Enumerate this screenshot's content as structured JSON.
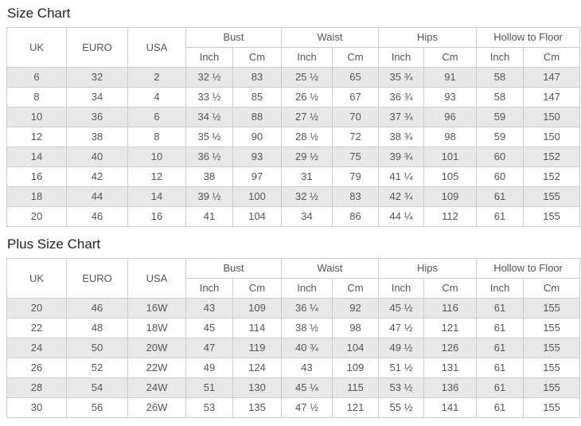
{
  "colors": {
    "row_alt_bg": "#e8e8e8",
    "border": "#cccccc",
    "text": "#555555",
    "title_text": "#1f1f1f"
  },
  "size_chart": {
    "title": "Size Chart",
    "headers": {
      "uk": "UK",
      "euro": "EURO",
      "usa": "USA"
    },
    "groups": {
      "bust": "Bust",
      "waist": "Waist",
      "hips": "Hips",
      "hollow": "Hollow to Floor"
    },
    "units": {
      "inch": "Inch",
      "cm": "Cm"
    },
    "rows": [
      [
        "6",
        "32",
        "2",
        "32 ½",
        "83",
        "25 ½",
        "65",
        "35 ¾",
        "91",
        "58",
        "147"
      ],
      [
        "8",
        "34",
        "4",
        "33 ½",
        "85",
        "26 ½",
        "67",
        "36 ¾",
        "93",
        "58",
        "147"
      ],
      [
        "10",
        "36",
        "6",
        "34 ½",
        "88",
        "27 ½",
        "70",
        "37 ¾",
        "96",
        "59",
        "150"
      ],
      [
        "12",
        "38",
        "8",
        "35 ½",
        "90",
        "28 ½",
        "72",
        "38 ¾",
        "98",
        "59",
        "150"
      ],
      [
        "14",
        "40",
        "10",
        "36 ½",
        "93",
        "29 ½",
        "75",
        "39 ¾",
        "101",
        "60",
        "152"
      ],
      [
        "16",
        "42",
        "12",
        "38",
        "97",
        "31",
        "79",
        "41 ¼",
        "105",
        "60",
        "152"
      ],
      [
        "18",
        "44",
        "14",
        "39 ½",
        "100",
        "32 ½",
        "83",
        "42 ¾",
        "109",
        "61",
        "155"
      ],
      [
        "20",
        "46",
        "16",
        "41",
        "104",
        "34",
        "86",
        "44 ¼",
        "112",
        "61",
        "155"
      ]
    ]
  },
  "plus_size_chart": {
    "title": "Plus Size Chart",
    "headers": {
      "uk": "UK",
      "euro": "EURO",
      "usa": "USA"
    },
    "groups": {
      "bust": "Bust",
      "waist": "Waist",
      "hips": "Hips",
      "hollow": "Hollow to Floor"
    },
    "units": {
      "inch": "Inch",
      "cm": "Cm"
    },
    "rows": [
      [
        "20",
        "46",
        "16W",
        "43",
        "109",
        "36 ¼",
        "92",
        "45 ½",
        "116",
        "61",
        "155"
      ],
      [
        "22",
        "48",
        "18W",
        "45",
        "114",
        "38 ½",
        "98",
        "47 ½",
        "121",
        "61",
        "155"
      ],
      [
        "24",
        "50",
        "20W",
        "47",
        "119",
        "40 ¾",
        "104",
        "49 ½",
        "126",
        "61",
        "155"
      ],
      [
        "26",
        "52",
        "22W",
        "49",
        "124",
        "43",
        "109",
        "51 ½",
        "131",
        "61",
        "155"
      ],
      [
        "28",
        "54",
        "24W",
        "51",
        "130",
        "45 ¼",
        "115",
        "53 ½",
        "136",
        "61",
        "155"
      ],
      [
        "30",
        "56",
        "26W",
        "53",
        "135",
        "47 ½",
        "121",
        "55 ½",
        "141",
        "61",
        "155"
      ]
    ]
  }
}
